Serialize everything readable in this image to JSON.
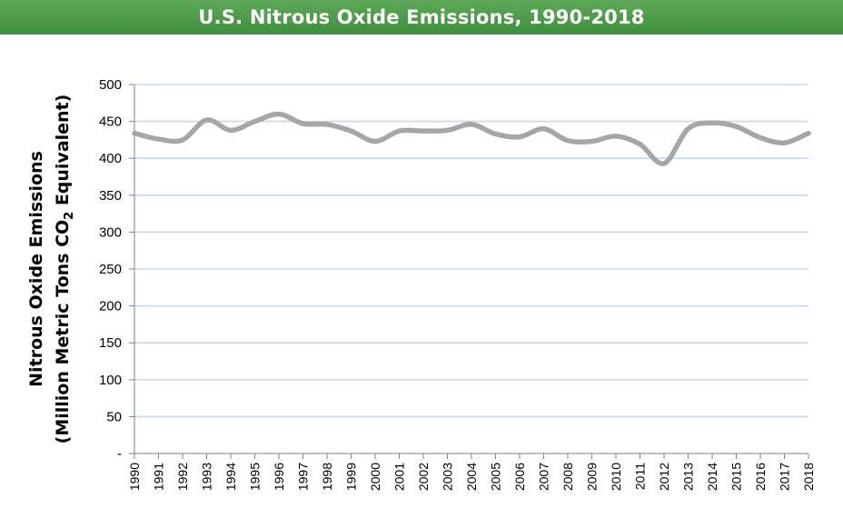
{
  "chart_data": {
    "type": "line",
    "title": "U.S. Nitrous Oxide Emissions, 1990-2018",
    "ylabel_line1": "Nitrous Oxide Emissions",
    "ylabel_line2_prefix": "(Million Metric Tons CO",
    "ylabel_line2_sub": "2",
    "ylabel_line2_suffix": " Equivalent)",
    "xlabel": "",
    "ylim": [
      0,
      500
    ],
    "yticks": [
      {
        "value": 0,
        "label": "-"
      },
      {
        "value": 50,
        "label": "50"
      },
      {
        "value": 100,
        "label": "100"
      },
      {
        "value": 150,
        "label": "150"
      },
      {
        "value": 200,
        "label": "200"
      },
      {
        "value": 250,
        "label": "250"
      },
      {
        "value": 300,
        "label": "300"
      },
      {
        "value": 350,
        "label": "350"
      },
      {
        "value": 400,
        "label": "400"
      },
      {
        "value": 450,
        "label": "450"
      },
      {
        "value": 500,
        "label": "500"
      }
    ],
    "grid": true,
    "legend": "none",
    "line_color": "#a6a6a6",
    "grid_color": "#c5d9ee",
    "x": [
      "1990",
      "1991",
      "1992",
      "1993",
      "1994",
      "1995",
      "1996",
      "1997",
      "1998",
      "1999",
      "2000",
      "2001",
      "2002",
      "2003",
      "2004",
      "2005",
      "2006",
      "2007",
      "2008",
      "2009",
      "2010",
      "2011",
      "2012",
      "2013",
      "2014",
      "2015",
      "2016",
      "2017",
      "2018"
    ],
    "series": [
      {
        "values": [
          434,
          426,
          425,
          452,
          438,
          450,
          460,
          447,
          446,
          437,
          423,
          437,
          437,
          438,
          446,
          433,
          429,
          440,
          424,
          423,
          430,
          419,
          393,
          440,
          448,
          443,
          428,
          421,
          434
        ]
      }
    ]
  }
}
